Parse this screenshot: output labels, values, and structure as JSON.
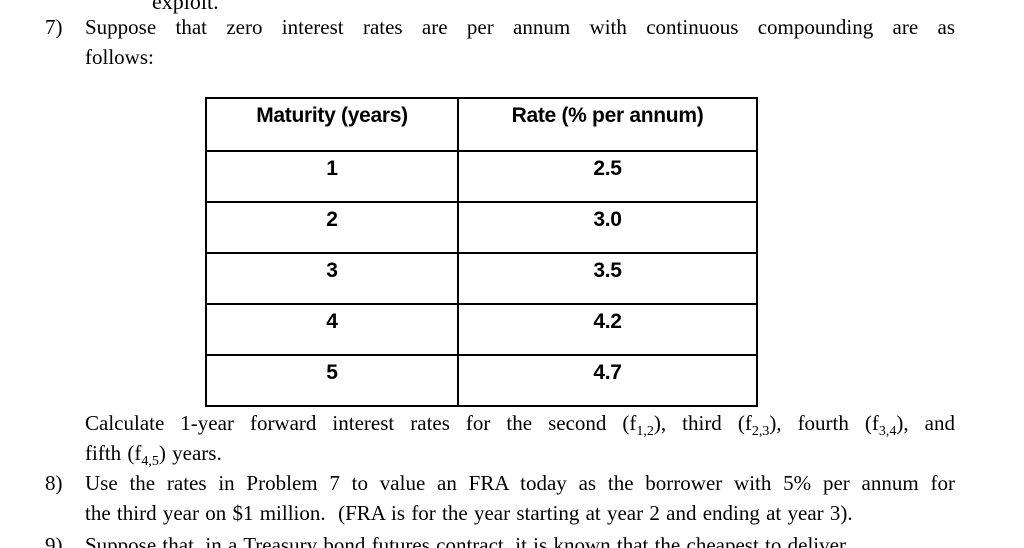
{
  "top_cutoff": {
    "text": "exploit."
  },
  "problem7": {
    "number": "7)",
    "lines": [
      {
        "justify": true,
        "segments": [
          {
            "text": "Suppose that zero interest rates are per annum with continuous compounding are as"
          }
        ]
      },
      {
        "justify": false,
        "segments": [
          {
            "text": "follows:"
          }
        ]
      }
    ]
  },
  "rates_table": {
    "headers": [
      "Maturity (years)",
      "Rate (% per annum)"
    ],
    "rows": [
      [
        "1",
        "2.5"
      ],
      [
        "2",
        "3.0"
      ],
      [
        "3",
        "3.5"
      ],
      [
        "4",
        "4.2"
      ],
      [
        "5",
        "4.7"
      ]
    ]
  },
  "calculate": {
    "lines": [
      {
        "justify": true,
        "segments": [
          {
            "text": "Calculate 1-year forward interest rates for the second (f"
          },
          {
            "text": "1,2",
            "sub": true
          },
          {
            "text": "), third (f"
          },
          {
            "text": "2,3",
            "sub": true
          },
          {
            "text": "), fourth (f"
          },
          {
            "text": "3,4",
            "sub": true
          },
          {
            "text": "), and"
          }
        ]
      },
      {
        "justify": false,
        "segments": [
          {
            "text": "fifth (f"
          },
          {
            "text": "4,5",
            "sub": true
          },
          {
            "text": ") years."
          }
        ]
      }
    ]
  },
  "problem8": {
    "number": "8)",
    "lines": [
      {
        "justify": true,
        "segments": [
          {
            "text": "Use the rates in Problem 7 to value an FRA today as the borrower with 5% per annum for"
          }
        ]
      },
      {
        "justify": false,
        "segments": [
          {
            "text": "the third year on $1 million.  (FRA is for the year starting at year 2 and ending at year 3)."
          }
        ]
      }
    ]
  },
  "problem9": {
    "number": "9)",
    "lines": [
      {
        "justify": false,
        "segments": [
          {
            "text": "Suppose that, in a Treasury bond futures contract, it is known that the cheapest to deliver"
          }
        ]
      }
    ]
  }
}
